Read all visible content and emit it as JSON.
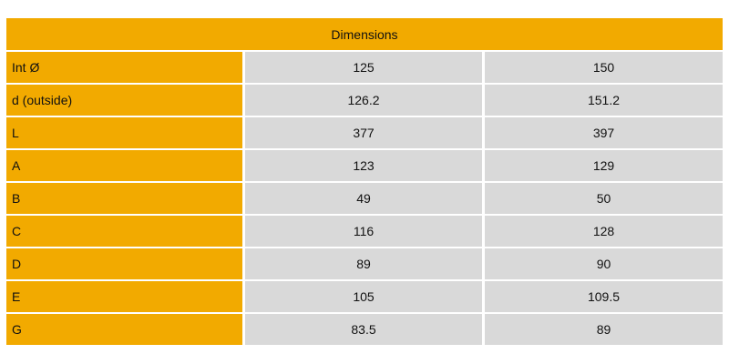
{
  "table": {
    "title": "Dimensions",
    "rows": [
      {
        "label": "Int Ø",
        "v1": "125",
        "v2": "150"
      },
      {
        "label": "d (outside)",
        "v1": "126.2",
        "v2": "151.2"
      },
      {
        "label": "L",
        "v1": "377",
        "v2": "397"
      },
      {
        "label": "A",
        "v1": "123",
        "v2": "129"
      },
      {
        "label": "B",
        "v1": "49",
        "v2": "50"
      },
      {
        "label": "C",
        "v1": "116",
        "v2": "128"
      },
      {
        "label": "D",
        "v1": "89",
        "v2": "90"
      },
      {
        "label": "E",
        "v1": "105",
        "v2": "109.5"
      },
      {
        "label": "G",
        "v1": "83.5",
        "v2": "89"
      }
    ]
  },
  "colors": {
    "label_bg": "#f2aa00",
    "value_bg": "#d9d9d9"
  }
}
